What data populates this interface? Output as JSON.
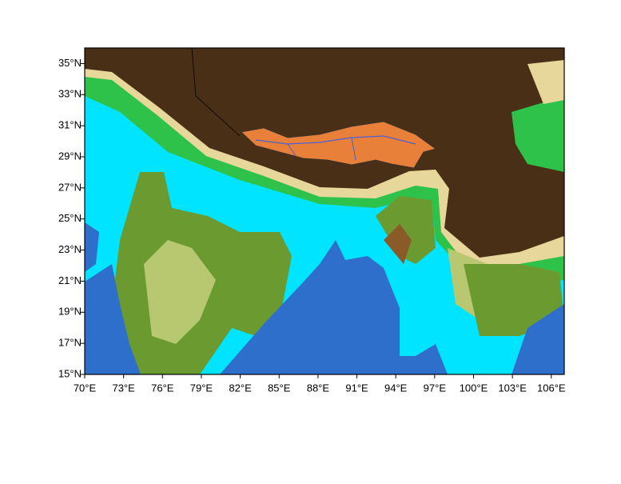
{
  "map": {
    "xlim": [
      70,
      107
    ],
    "ylim": [
      15,
      36
    ],
    "xticks": [
      {
        "value": 70,
        "label": "70°E"
      },
      {
        "value": 73,
        "label": "73°E"
      },
      {
        "value": 76,
        "label": "76°E"
      },
      {
        "value": 79,
        "label": "79°E"
      },
      {
        "value": 82,
        "label": "82°E"
      },
      {
        "value": 85,
        "label": "85°E"
      },
      {
        "value": 88,
        "label": "88°E"
      },
      {
        "value": 91,
        "label": "91°E"
      },
      {
        "value": 94,
        "label": "94°E"
      },
      {
        "value": 97,
        "label": "97°E"
      },
      {
        "value": 100,
        "label": "100°E"
      },
      {
        "value": 103,
        "label": "103°E"
      },
      {
        "value": 106,
        "label": "106°E"
      }
    ],
    "yticks": [
      {
        "value": 15,
        "label": "15°N"
      },
      {
        "value": 17,
        "label": "17°N"
      },
      {
        "value": 19,
        "label": "19°N"
      },
      {
        "value": 21,
        "label": "21°N"
      },
      {
        "value": 23,
        "label": "23°N"
      },
      {
        "value": 25,
        "label": "25°N"
      },
      {
        "value": 27,
        "label": "27°N"
      },
      {
        "value": 29,
        "label": "29°N"
      },
      {
        "value": 31,
        "label": "31°N"
      },
      {
        "value": 33,
        "label": "33°N"
      },
      {
        "value": 35,
        "label": "35°N"
      }
    ]
  }
}
